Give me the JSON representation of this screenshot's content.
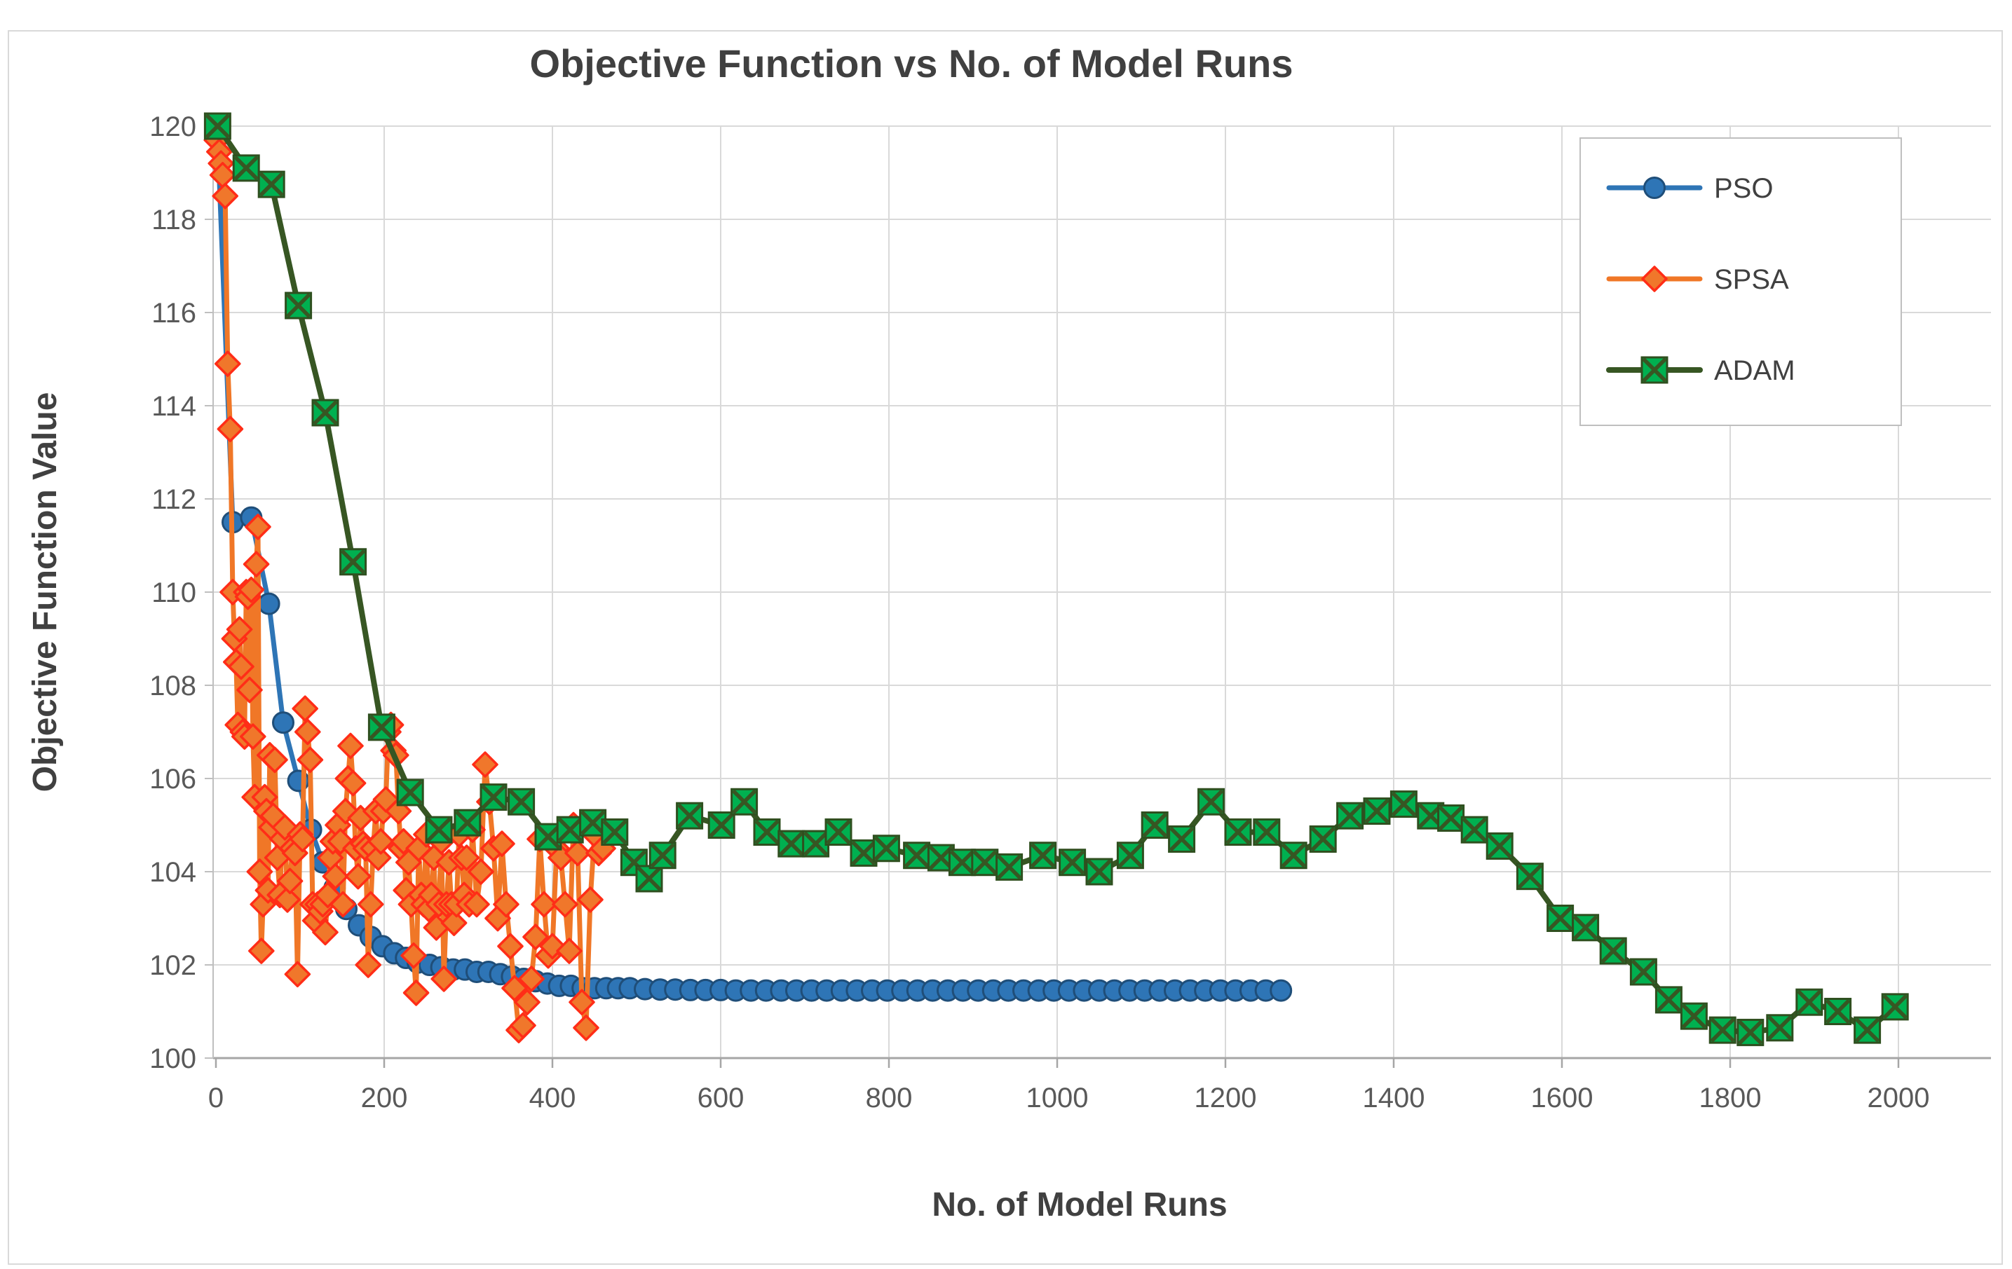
{
  "chart_data": {
    "type": "line",
    "title": "Objective Function vs No. of Model Runs",
    "xlabel": "No. of Model Runs",
    "ylabel": "Objective Function Value",
    "xlim": [
      0,
      2000
    ],
    "ylim": [
      100,
      120
    ],
    "x_ticks": [
      0,
      200,
      400,
      600,
      800,
      1000,
      1200,
      1400,
      1600,
      1800,
      2000
    ],
    "y_ticks": [
      100,
      102,
      104,
      106,
      108,
      110,
      112,
      114,
      116,
      118,
      120
    ],
    "grid": true,
    "legend_position": "top-right",
    "colors": {
      "grid": "#D9D9D9",
      "axis": "#A6A6A6",
      "axis_minor": "#BFBFBF",
      "text": "#595959",
      "title_text": "#404040",
      "legend_border": "#BFBFBF",
      "figure_border": "#D9D9D9"
    },
    "series": [
      {
        "name": "PSO",
        "marker": "circle",
        "line_color": "#2E75B6",
        "marker_fill": "#2E75B6",
        "marker_stroke": "#1F4E79",
        "points": [
          [
            2,
            119.8
          ],
          [
            20,
            111.5
          ],
          [
            42,
            111.6
          ],
          [
            63,
            109.75
          ],
          [
            80,
            107.2
          ],
          [
            98,
            105.95
          ],
          [
            113,
            104.9
          ],
          [
            127,
            104.2
          ],
          [
            141,
            103.65
          ],
          [
            155,
            103.2
          ],
          [
            170,
            102.85
          ],
          [
            184,
            102.6
          ],
          [
            198,
            102.4
          ],
          [
            212,
            102.25
          ],
          [
            226,
            102.15
          ],
          [
            240,
            102.05
          ],
          [
            254,
            102.0
          ],
          [
            268,
            101.95
          ],
          [
            282,
            101.9
          ],
          [
            296,
            101.9
          ],
          [
            310,
            101.85
          ],
          [
            324,
            101.85
          ],
          [
            338,
            101.8
          ],
          [
            352,
            101.75
          ],
          [
            366,
            101.7
          ],
          [
            380,
            101.65
          ],
          [
            394,
            101.6
          ],
          [
            408,
            101.55
          ],
          [
            422,
            101.55
          ],
          [
            436,
            101.5
          ],
          [
            450,
            101.5
          ],
          [
            464,
            101.5
          ],
          [
            478,
            101.5
          ],
          [
            492,
            101.5
          ],
          [
            510,
            101.48
          ],
          [
            528,
            101.47
          ],
          [
            546,
            101.47
          ],
          [
            564,
            101.46
          ],
          [
            582,
            101.46
          ],
          [
            600,
            101.46
          ],
          [
            618,
            101.45
          ],
          [
            636,
            101.45
          ],
          [
            654,
            101.45
          ],
          [
            672,
            101.45
          ],
          [
            690,
            101.45
          ],
          [
            708,
            101.45
          ],
          [
            726,
            101.45
          ],
          [
            744,
            101.45
          ],
          [
            762,
            101.45
          ],
          [
            780,
            101.45
          ],
          [
            798,
            101.45
          ],
          [
            816,
            101.45
          ],
          [
            834,
            101.45
          ],
          [
            852,
            101.45
          ],
          [
            870,
            101.45
          ],
          [
            888,
            101.45
          ],
          [
            906,
            101.45
          ],
          [
            924,
            101.45
          ],
          [
            942,
            101.45
          ],
          [
            960,
            101.45
          ],
          [
            978,
            101.45
          ],
          [
            996,
            101.45
          ],
          [
            1014,
            101.45
          ],
          [
            1032,
            101.45
          ],
          [
            1050,
            101.45
          ],
          [
            1068,
            101.45
          ],
          [
            1086,
            101.45
          ],
          [
            1104,
            101.45
          ],
          [
            1122,
            101.45
          ],
          [
            1140,
            101.45
          ],
          [
            1158,
            101.45
          ],
          [
            1176,
            101.45
          ],
          [
            1194,
            101.45
          ],
          [
            1212,
            101.45
          ],
          [
            1230,
            101.45
          ],
          [
            1248,
            101.45
          ],
          [
            1266,
            101.45
          ]
        ]
      },
      {
        "name": "SPSA",
        "marker": "diamond",
        "line_color": "#F07727",
        "marker_fill": "#F0772B",
        "marker_stroke": "#FF2D17",
        "points": [
          [
            1,
            119.7
          ],
          [
            4,
            119.45
          ],
          [
            6,
            119.2
          ],
          [
            8,
            118.95
          ],
          [
            11,
            118.5
          ],
          [
            14,
            114.9
          ],
          [
            17,
            113.5
          ],
          [
            20,
            110.0
          ],
          [
            22,
            109.0
          ],
          [
            24,
            108.5
          ],
          [
            26,
            107.15
          ],
          [
            28,
            109.2
          ],
          [
            30,
            108.4
          ],
          [
            32,
            107.0
          ],
          [
            34,
            106.9
          ],
          [
            36,
            110.0
          ],
          [
            38,
            109.9
          ],
          [
            40,
            107.9
          ],
          [
            42,
            110.05
          ],
          [
            44,
            106.9
          ],
          [
            46,
            105.6
          ],
          [
            48,
            110.6
          ],
          [
            50,
            111.4
          ],
          [
            52,
            104.0
          ],
          [
            54,
            102.3
          ],
          [
            56,
            103.3
          ],
          [
            58,
            105.6
          ],
          [
            60,
            105.3
          ],
          [
            62,
            103.6
          ],
          [
            64,
            106.5
          ],
          [
            66,
            104.95
          ],
          [
            68,
            105.2
          ],
          [
            70,
            106.4
          ],
          [
            73,
            104.3
          ],
          [
            76,
            103.5
          ],
          [
            79,
            104.7
          ],
          [
            82,
            104.95
          ],
          [
            85,
            103.4
          ],
          [
            88,
            103.8
          ],
          [
            91,
            104.5
          ],
          [
            94,
            104.4
          ],
          [
            97,
            101.8
          ],
          [
            100,
            104.8
          ],
          [
            103,
            104.7
          ],
          [
            106,
            107.5
          ],
          [
            109,
            107.0
          ],
          [
            112,
            106.4
          ],
          [
            115,
            103.3
          ],
          [
            118,
            102.95
          ],
          [
            121,
            103.3
          ],
          [
            124,
            103.15
          ],
          [
            127,
            103.3
          ],
          [
            130,
            102.7
          ],
          [
            133,
            103.5
          ],
          [
            136,
            104.3
          ],
          [
            139,
            104.65
          ],
          [
            142,
            103.9
          ],
          [
            145,
            105.0
          ],
          [
            148,
            104.65
          ],
          [
            151,
            103.3
          ],
          [
            154,
            105.3
          ],
          [
            157,
            106.0
          ],
          [
            160,
            106.7
          ],
          [
            163,
            105.9
          ],
          [
            166,
            104.5
          ],
          [
            169,
            103.9
          ],
          [
            172,
            105.15
          ],
          [
            175,
            104.6
          ],
          [
            178,
            104.5
          ],
          [
            181,
            102.0
          ],
          [
            184,
            103.3
          ],
          [
            187,
            104.5
          ],
          [
            190,
            105.3
          ],
          [
            193,
            104.3
          ],
          [
            196,
            104.65
          ],
          [
            199,
            105.3
          ],
          [
            202,
            105.55
          ],
          [
            205,
            107.0
          ],
          [
            208,
            107.15
          ],
          [
            211,
            106.6
          ],
          [
            214,
            106.5
          ],
          [
            217,
            105.3
          ],
          [
            220,
            104.5
          ],
          [
            223,
            104.65
          ],
          [
            226,
            103.6
          ],
          [
            229,
            104.2
          ],
          [
            232,
            103.3
          ],
          [
            235,
            102.2
          ],
          [
            238,
            101.4
          ],
          [
            241,
            104.5
          ],
          [
            244,
            103.5
          ],
          [
            247,
            103.3
          ],
          [
            250,
            104.8
          ],
          [
            253,
            103.2
          ],
          [
            256,
            103.5
          ],
          [
            259,
            104.3
          ],
          [
            262,
            102.8
          ],
          [
            265,
            103.3
          ],
          [
            268,
            104.65
          ],
          [
            271,
            101.7
          ],
          [
            274,
            103.3
          ],
          [
            277,
            104.2
          ],
          [
            280,
            103.3
          ],
          [
            283,
            102.9
          ],
          [
            286,
            103.3
          ],
          [
            289,
            104.8
          ],
          [
            292,
            104.3
          ],
          [
            295,
            103.5
          ],
          [
            298,
            104.3
          ],
          [
            301,
            103.3
          ],
          [
            305,
            104.9
          ],
          [
            310,
            103.3
          ],
          [
            315,
            104.0
          ],
          [
            320,
            106.3
          ],
          [
            325,
            105.5
          ],
          [
            330,
            104.5
          ],
          [
            335,
            103.0
          ],
          [
            340,
            104.6
          ],
          [
            345,
            103.3
          ],
          [
            350,
            102.4
          ],
          [
            355,
            101.5
          ],
          [
            360,
            100.6
          ],
          [
            365,
            100.7
          ],
          [
            370,
            101.2
          ],
          [
            375,
            101.7
          ],
          [
            380,
            102.6
          ],
          [
            385,
            104.7
          ],
          [
            390,
            103.3
          ],
          [
            395,
            102.2
          ],
          [
            400,
            102.4
          ],
          [
            405,
            104.5
          ],
          [
            410,
            104.3
          ],
          [
            415,
            103.3
          ],
          [
            420,
            102.3
          ],
          [
            425,
            105.0
          ],
          [
            430,
            104.4
          ],
          [
            435,
            101.2
          ],
          [
            440,
            100.65
          ],
          [
            445,
            103.4
          ],
          [
            450,
            104.8
          ],
          [
            455,
            104.4
          ],
          [
            460,
            104.5
          ]
        ]
      },
      {
        "name": "ADAM",
        "marker": "square-x",
        "line_color": "#375623",
        "marker_fill": "#00B050",
        "marker_stroke": "#2F4F1F",
        "points": [
          [
            2,
            120.0
          ],
          [
            36,
            119.1
          ],
          [
            66,
            118.75
          ],
          [
            98,
            116.15
          ],
          [
            130,
            113.85
          ],
          [
            163,
            110.65
          ],
          [
            197,
            107.1
          ],
          [
            231,
            105.7
          ],
          [
            265,
            104.9
          ],
          [
            299,
            105.05
          ],
          [
            330,
            105.6
          ],
          [
            363,
            105.5
          ],
          [
            395,
            104.75
          ],
          [
            421,
            104.9
          ],
          [
            448,
            105.05
          ],
          [
            474,
            104.85
          ],
          [
            497,
            104.2
          ],
          [
            515,
            103.85
          ],
          [
            531,
            104.35
          ],
          [
            563,
            105.2
          ],
          [
            601,
            105.0
          ],
          [
            628,
            105.5
          ],
          [
            655,
            104.85
          ],
          [
            684,
            104.6
          ],
          [
            713,
            104.6
          ],
          [
            740,
            104.85
          ],
          [
            770,
            104.4
          ],
          [
            797,
            104.5
          ],
          [
            833,
            104.35
          ],
          [
            862,
            104.3
          ],
          [
            887,
            104.2
          ],
          [
            914,
            104.2
          ],
          [
            943,
            104.1
          ],
          [
            983,
            104.35
          ],
          [
            1018,
            104.2
          ],
          [
            1050,
            104.0
          ],
          [
            1087,
            104.35
          ],
          [
            1116,
            105.0
          ],
          [
            1148,
            104.7
          ],
          [
            1183,
            105.5
          ],
          [
            1215,
            104.85
          ],
          [
            1249,
            104.85
          ],
          [
            1281,
            104.35
          ],
          [
            1316,
            104.7
          ],
          [
            1348,
            105.2
          ],
          [
            1380,
            105.3
          ],
          [
            1412,
            105.45
          ],
          [
            1444,
            105.2
          ],
          [
            1468,
            105.15
          ],
          [
            1496,
            104.9
          ],
          [
            1526,
            104.55
          ],
          [
            1562,
            103.9
          ],
          [
            1598,
            103.0
          ],
          [
            1628,
            102.8
          ],
          [
            1661,
            102.3
          ],
          [
            1697,
            101.85
          ],
          [
            1727,
            101.25
          ],
          [
            1757,
            100.9
          ],
          [
            1791,
            100.6
          ],
          [
            1824,
            100.55
          ],
          [
            1859,
            100.65
          ],
          [
            1894,
            101.2
          ],
          [
            1928,
            101.0
          ],
          [
            1963,
            100.6
          ],
          [
            1996,
            101.1
          ]
        ]
      }
    ]
  }
}
